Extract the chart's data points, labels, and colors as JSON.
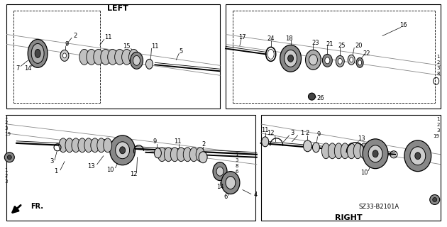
{
  "bg_color": "#ffffff",
  "diagram_code": "SZ33-B2101A",
  "left_label": "LEFT",
  "right_label": "RIGHT",
  "fr_label": "FR.",
  "fig_width": 6.3,
  "fig_height": 3.2,
  "dpi": 100,
  "gray_dark": "#444444",
  "gray_med": "#888888",
  "gray_light": "#cccccc",
  "gray_boot": "#aaaaaa",
  "gray_mid": "#666666"
}
